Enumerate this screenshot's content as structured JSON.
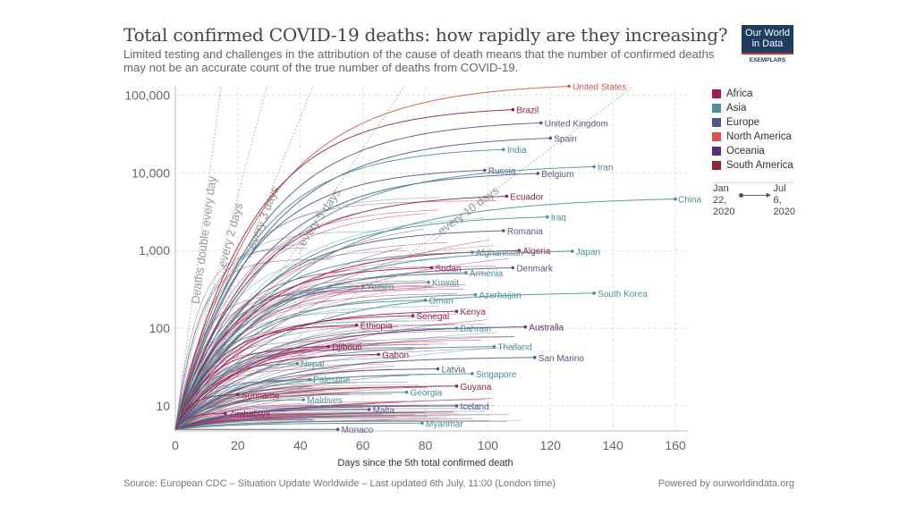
{
  "title": "Total confirmed COVID-19 deaths: how rapidly are they increasing?",
  "subtitle": "Limited testing and challenges in the attribution of the cause of death means that the number of confirmed deaths may not be an accurate count of the true number of deaths from COVID-19.",
  "logo": {
    "line1": "Our World",
    "line2": "in Data",
    "partner": "EXEMPLARS"
  },
  "legend": [
    {
      "name": "Africa",
      "color": "#9c1c57"
    },
    {
      "name": "Asia",
      "color": "#4c9093"
    },
    {
      "name": "Europe",
      "color": "#4f5a82"
    },
    {
      "name": "North America",
      "color": "#d2544c"
    },
    {
      "name": "Oceania",
      "color": "#5a2d78"
    },
    {
      "name": "South America",
      "color": "#8c2736"
    }
  ],
  "timeline": {
    "start_l1": "Jan",
    "start_l2": "22,",
    "start_l3": "2020",
    "end_l1": "Jul",
    "end_l2": "6,",
    "end_l3": "2020"
  },
  "source": "Source: European CDC – Situation Update Worldwide – Last updated 6th July, 11:00 (London time)",
  "powered": "Powered by ourworldindata.org",
  "chart_data": {
    "type": "line",
    "xlabel": "Days since the 5th total confirmed death",
    "ylabel": "",
    "xlim": [
      0,
      160
    ],
    "ylim": [
      5,
      130000
    ],
    "yscale": "log",
    "grid": true,
    "x_ticks": [
      "0",
      "20",
      "40",
      "60",
      "80",
      "100",
      "120",
      "140",
      "160"
    ],
    "y_ticks": [
      {
        "v": 10,
        "label": "10"
      },
      {
        "v": 100,
        "label": "100"
      },
      {
        "v": 1000,
        "label": "1,000"
      },
      {
        "v": 10000,
        "label": "10,000"
      },
      {
        "v": 100000,
        "label": "100,000"
      }
    ],
    "doubling_lines": [
      {
        "days": 1,
        "label": "Deaths double every day"
      },
      {
        "days": 2,
        "label": "...every 2 days"
      },
      {
        "days": 3,
        "label": "...every 3 days"
      },
      {
        "days": 5,
        "label": "...every 5 days"
      },
      {
        "days": 10,
        "label": "...every 10 days"
      }
    ],
    "series": [
      {
        "name": "United States",
        "region": "North America",
        "last_day": 126,
        "deaths": 130000
      },
      {
        "name": "Brazil",
        "region": "South America",
        "last_day": 108,
        "deaths": 65000
      },
      {
        "name": "United Kingdom",
        "region": "Europe",
        "last_day": 117,
        "deaths": 44000
      },
      {
        "name": "Spain",
        "region": "Europe",
        "last_day": 120,
        "deaths": 28000
      },
      {
        "name": "India",
        "region": "Asia",
        "last_day": 105,
        "deaths": 20000
      },
      {
        "name": "Russia",
        "region": "Europe",
        "last_day": 99,
        "deaths": 10800
      },
      {
        "name": "Belgium",
        "region": "Europe",
        "last_day": 116,
        "deaths": 9800
      },
      {
        "name": "Iran",
        "region": "Asia",
        "last_day": 134,
        "deaths": 12000
      },
      {
        "name": "Ecuador",
        "region": "South America",
        "last_day": 106,
        "deaths": 5000
      },
      {
        "name": "China",
        "region": "Asia",
        "last_day": 160,
        "deaths": 4600
      },
      {
        "name": "Iraq",
        "region": "Asia",
        "last_day": 119,
        "deaths": 2700
      },
      {
        "name": "Romania",
        "region": "Europe",
        "last_day": 105,
        "deaths": 1800
      },
      {
        "name": "Algeria",
        "region": "Africa",
        "last_day": 110,
        "deaths": 1000
      },
      {
        "name": "Afghanistan",
        "region": "Asia",
        "last_day": 95,
        "deaths": 950
      },
      {
        "name": "Japan",
        "region": "Asia",
        "last_day": 127,
        "deaths": 980
      },
      {
        "name": "Denmark",
        "region": "Europe",
        "last_day": 108,
        "deaths": 600
      },
      {
        "name": "Sudan",
        "region": "Africa",
        "last_day": 82,
        "deaths": 600
      },
      {
        "name": "Armenia",
        "region": "Asia",
        "last_day": 93,
        "deaths": 520
      },
      {
        "name": "Kuwait",
        "region": "Asia",
        "last_day": 81,
        "deaths": 390
      },
      {
        "name": "Yemen",
        "region": "Asia",
        "last_day": 60,
        "deaths": 350
      },
      {
        "name": "South Korea",
        "region": "Asia",
        "last_day": 134,
        "deaths": 283
      },
      {
        "name": "Azerbaijan",
        "region": "Asia",
        "last_day": 96,
        "deaths": 270
      },
      {
        "name": "Oman",
        "region": "Asia",
        "last_day": 80,
        "deaths": 230
      },
      {
        "name": "Kenya",
        "region": "Africa",
        "last_day": 90,
        "deaths": 165
      },
      {
        "name": "Senegal",
        "region": "Africa",
        "last_day": 76,
        "deaths": 145
      },
      {
        "name": "Ethiopia",
        "region": "Africa",
        "last_day": 58,
        "deaths": 110
      },
      {
        "name": "Australia",
        "region": "Oceania",
        "last_day": 112,
        "deaths": 104
      },
      {
        "name": "Bahrain",
        "region": "Asia",
        "last_day": 90,
        "deaths": 100
      },
      {
        "name": "Thailand",
        "region": "Asia",
        "last_day": 102,
        "deaths": 58
      },
      {
        "name": "Djibouti",
        "region": "Africa",
        "last_day": 49,
        "deaths": 58
      },
      {
        "name": "San Marino",
        "region": "Europe",
        "last_day": 115,
        "deaths": 42
      },
      {
        "name": "Gabon",
        "region": "Africa",
        "last_day": 65,
        "deaths": 46
      },
      {
        "name": "Nepal",
        "region": "Asia",
        "last_day": 39,
        "deaths": 35
      },
      {
        "name": "Latvia",
        "region": "Europe",
        "last_day": 84,
        "deaths": 30
      },
      {
        "name": "Singapore",
        "region": "Asia",
        "last_day": 95,
        "deaths": 26
      },
      {
        "name": "Palestine",
        "region": "Asia",
        "last_day": 43,
        "deaths": 22
      },
      {
        "name": "Guyana",
        "region": "South America",
        "last_day": 90,
        "deaths": 18
      },
      {
        "name": "Georgia",
        "region": "Asia",
        "last_day": 74,
        "deaths": 15
      },
      {
        "name": "Suriname",
        "region": "South America",
        "last_day": 20,
        "deaths": 14
      },
      {
        "name": "Maldives",
        "region": "Asia",
        "last_day": 41,
        "deaths": 12
      },
      {
        "name": "Iceland",
        "region": "Europe",
        "last_day": 90,
        "deaths": 10
      },
      {
        "name": "Malta",
        "region": "Europe",
        "last_day": 62,
        "deaths": 9
      },
      {
        "name": "Zimbabwe",
        "region": "Africa",
        "last_day": 16,
        "deaths": 8
      },
      {
        "name": "Myanmar",
        "region": "Asia",
        "last_day": 79,
        "deaths": 6
      },
      {
        "name": "Monaco",
        "region": "Europe",
        "last_day": 52,
        "deaths": 5
      }
    ]
  }
}
